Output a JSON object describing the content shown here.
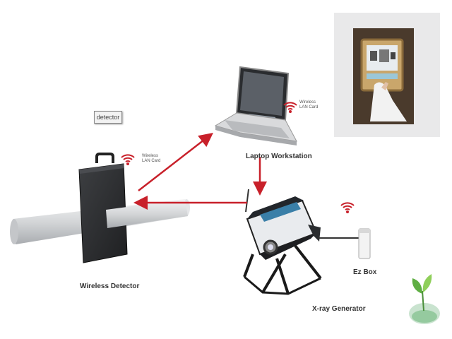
{
  "labels": {
    "detector_tag": "detector",
    "wireless_detector": "Wireless Detector",
    "laptop_workstation": "Laptop Workstation",
    "xray_generator": "X-ray Generator",
    "ez_box": "Ez Box",
    "wlan_line1": "Wireless",
    "wlan_line2": "LAN Card"
  },
  "colors": {
    "arrow": "#c8202a",
    "wifi": "#c8202a",
    "panel": "#2f3133",
    "pipe": "#d9dadc"
  },
  "icons": [
    "wifi-icon",
    "leaf-globe-icon"
  ]
}
